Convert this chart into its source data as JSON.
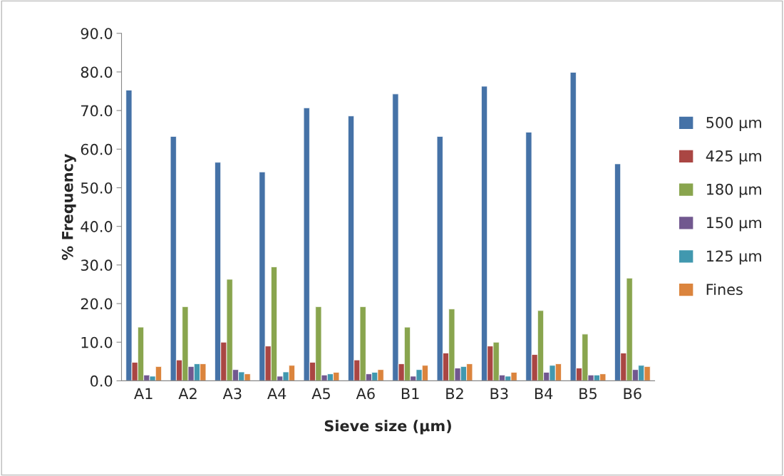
{
  "chart_data": {
    "type": "bar",
    "xlabel": "Sieve size (µm)",
    "ylabel": "% Frequency",
    "categories": [
      "A1",
      "A2",
      "A3",
      "A4",
      "A5",
      "A6",
      "B1",
      "B2",
      "B3",
      "B4",
      "B5",
      "B6"
    ],
    "series": [
      {
        "name": "500 µm",
        "color": "#4572a7",
        "values": [
          75.3,
          63.3,
          56.6,
          54.1,
          70.7,
          68.6,
          74.3,
          63.3,
          76.3,
          64.4,
          79.9,
          56.2
        ]
      },
      {
        "name": "425 µm",
        "color": "#aa4643",
        "values": [
          4.8,
          5.4,
          10.0,
          9.0,
          4.8,
          5.4,
          4.4,
          7.2,
          9.0,
          6.8,
          3.3,
          7.2
        ]
      },
      {
        "name": "180 µm",
        "color": "#89a54e",
        "values": [
          13.9,
          19.2,
          26.3,
          29.5,
          19.2,
          19.2,
          13.9,
          18.6,
          10.0,
          18.2,
          12.1,
          26.6
        ]
      },
      {
        "name": "150 µm",
        "color": "#71588f",
        "values": [
          1.5,
          3.7,
          2.9,
          1.2,
          1.5,
          1.8,
          1.2,
          3.3,
          1.5,
          2.2,
          1.5,
          2.9
        ]
      },
      {
        "name": "125 µm",
        "color": "#4198af",
        "values": [
          1.2,
          4.4,
          2.3,
          2.3,
          1.8,
          2.2,
          2.9,
          3.7,
          1.2,
          4.0,
          1.5,
          4.0
        ]
      },
      {
        "name": "Fines",
        "color": "#db843d",
        "values": [
          3.7,
          4.4,
          1.8,
          4.0,
          2.2,
          2.9,
          4.0,
          4.4,
          2.2,
          4.4,
          1.8,
          3.7
        ]
      }
    ],
    "ylim": [
      0,
      90
    ],
    "yticks": [
      {
        "value": 0,
        "label": "0.0"
      },
      {
        "value": 10,
        "label": "10.0"
      },
      {
        "value": 20,
        "label": "20.0"
      },
      {
        "value": 30,
        "label": "30.0"
      },
      {
        "value": 40,
        "label": "40.0"
      },
      {
        "value": 50,
        "label": "50.0"
      },
      {
        "value": 60,
        "label": "60.0"
      },
      {
        "value": 70,
        "label": "70.0"
      },
      {
        "value": 80,
        "label": "80.0"
      },
      {
        "value": 90,
        "label": "90.0"
      }
    ],
    "grid": false,
    "legend": "right"
  }
}
